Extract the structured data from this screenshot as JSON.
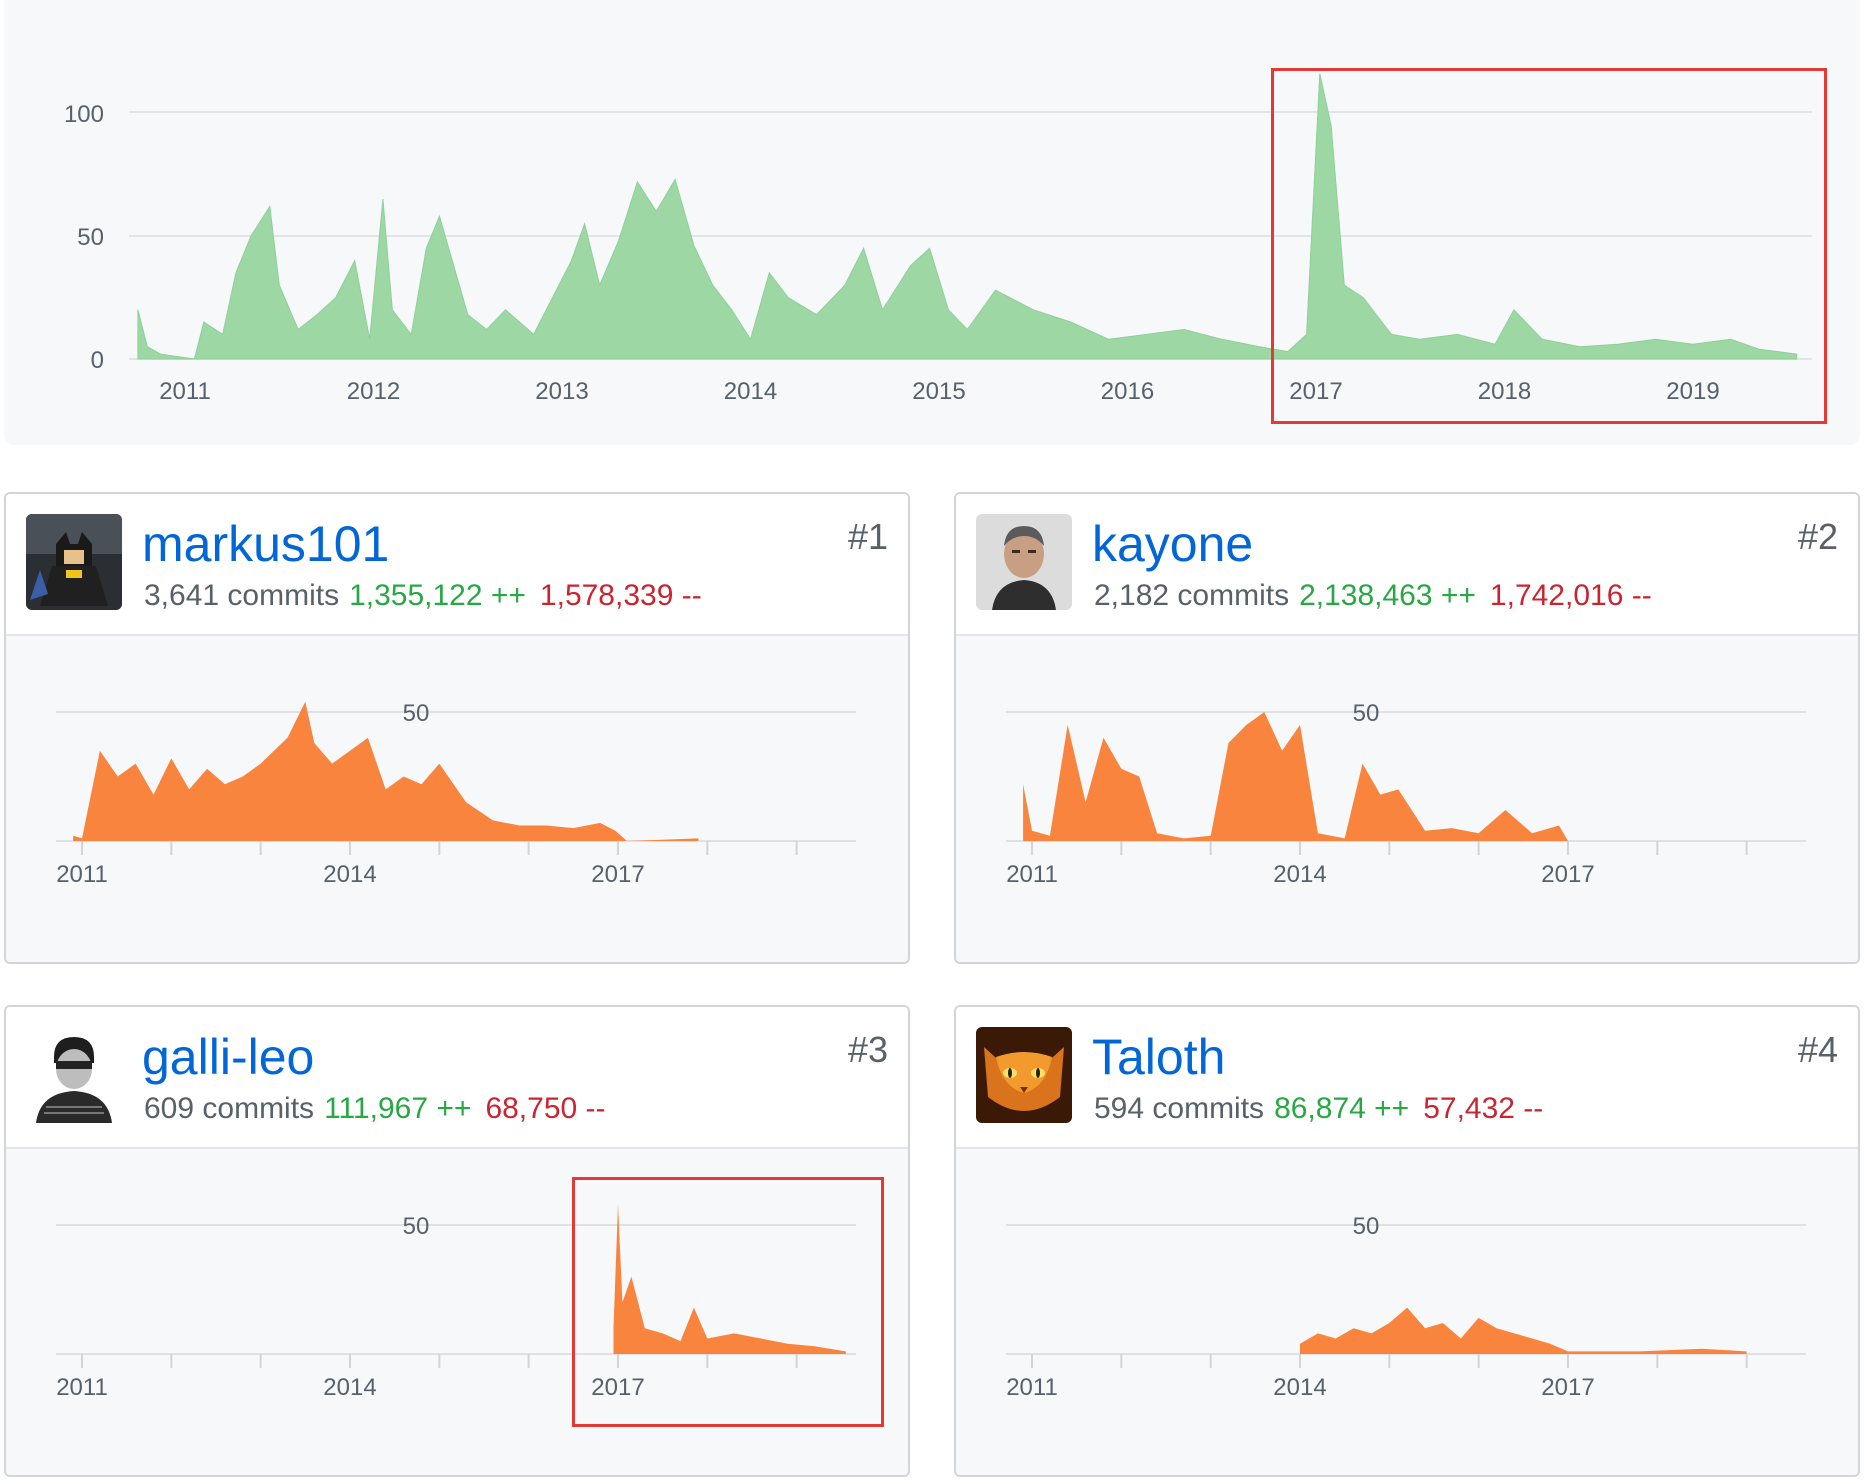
{
  "main_chart": {
    "y_ticks": [
      "100",
      "50",
      "0"
    ],
    "x_ticks": [
      "2011",
      "2012",
      "2013",
      "2014",
      "2015",
      "2016",
      "2017",
      "2018",
      "2019"
    ],
    "fill_color": "#9cd7a4"
  },
  "chart_data": [
    {
      "type": "area",
      "title": "",
      "xlabel": "",
      "ylabel": "",
      "ylim": [
        0,
        115
      ],
      "xlim": [
        2010.75,
        2019.55
      ],
      "peak": {
        "x": 2017.02,
        "y": 116
      },
      "series": [
        {
          "name": "commits",
          "x": [
            2010.75,
            2010.8,
            2010.87,
            2011.05,
            2011.1,
            2011.2,
            2011.27,
            2011.35,
            2011.45,
            2011.5,
            2011.6,
            2011.7,
            2011.8,
            2011.9,
            2011.98,
            2012.05,
            2012.1,
            2012.2,
            2012.28,
            2012.35,
            2012.5,
            2012.6,
            2012.7,
            2012.85,
            2012.95,
            2013.05,
            2013.12,
            2013.2,
            2013.3,
            2013.4,
            2013.5,
            2013.6,
            2013.7,
            2013.8,
            2013.9,
            2014.0,
            2014.1,
            2014.2,
            2014.35,
            2014.5,
            2014.6,
            2014.7,
            2014.85,
            2014.95,
            2015.05,
            2015.15,
            2015.3,
            2015.5,
            2015.7,
            2015.9,
            2016.1,
            2016.3,
            2016.5,
            2016.7,
            2016.85,
            2016.95,
            2017.02,
            2017.08,
            2017.15,
            2017.25,
            2017.4,
            2017.55,
            2017.75,
            2017.95,
            2018.05,
            2018.2,
            2018.4,
            2018.6,
            2018.8,
            2019.0,
            2019.2,
            2019.35,
            2019.55
          ],
          "y": [
            20,
            5,
            2,
            0,
            15,
            10,
            35,
            50,
            62,
            30,
            12,
            18,
            25,
            40,
            8,
            65,
            20,
            10,
            45,
            58,
            18,
            12,
            20,
            10,
            25,
            40,
            55,
            30,
            48,
            72,
            60,
            73,
            46,
            30,
            20,
            8,
            35,
            25,
            18,
            30,
            45,
            20,
            38,
            45,
            20,
            12,
            28,
            20,
            15,
            8,
            10,
            12,
            8,
            5,
            3,
            10,
            116,
            95,
            30,
            25,
            10,
            8,
            10,
            6,
            20,
            8,
            5,
            6,
            8,
            6,
            8,
            4,
            2
          ]
        }
      ]
    },
    {
      "type": "area",
      "title": "markus101",
      "x_ticks": [
        "2011",
        "2014",
        "2017"
      ],
      "y_ticks": [
        "50"
      ],
      "ylim": [
        0,
        50
      ],
      "series": [
        {
          "name": "commits",
          "x": [
            2010.9,
            2011.0,
            2011.2,
            2011.4,
            2011.6,
            2011.8,
            2012.0,
            2012.2,
            2012.4,
            2012.6,
            2012.8,
            2013.0,
            2013.3,
            2013.5,
            2013.6,
            2013.8,
            2014.0,
            2014.2,
            2014.4,
            2014.6,
            2014.8,
            2015.0,
            2015.3,
            2015.6,
            2015.9,
            2016.2,
            2016.5,
            2016.8,
            2016.97,
            2017.1,
            2017.9
          ],
          "y": [
            2,
            1,
            35,
            25,
            30,
            18,
            32,
            20,
            28,
            22,
            25,
            30,
            40,
            54,
            38,
            30,
            35,
            40,
            20,
            25,
            22,
            30,
            15,
            8,
            6,
            6,
            5,
            7,
            4,
            0,
            1
          ]
        }
      ]
    },
    {
      "type": "area",
      "title": "kayone",
      "x_ticks": [
        "2011",
        "2014",
        "2017"
      ],
      "y_ticks": [
        "50"
      ],
      "ylim": [
        0,
        50
      ],
      "series": [
        {
          "name": "commits",
          "x": [
            2010.9,
            2011.0,
            2011.2,
            2011.4,
            2011.6,
            2011.8,
            2012.0,
            2012.2,
            2012.4,
            2012.7,
            2013.0,
            2013.2,
            2013.4,
            2013.6,
            2013.8,
            2014.0,
            2014.2,
            2014.5,
            2014.7,
            2014.9,
            2015.1,
            2015.4,
            2015.7,
            2016.0,
            2016.3,
            2016.6,
            2016.9,
            2017.0
          ],
          "y": [
            22,
            4,
            2,
            45,
            15,
            40,
            28,
            25,
            3,
            1,
            2,
            38,
            45,
            50,
            35,
            45,
            3,
            1,
            30,
            18,
            20,
            4,
            5,
            3,
            12,
            3,
            6,
            0
          ]
        }
      ]
    },
    {
      "type": "area",
      "title": "galli-leo",
      "x_ticks": [
        "2011",
        "2014",
        "2017"
      ],
      "y_ticks": [
        "50"
      ],
      "ylim": [
        0,
        50
      ],
      "series": [
        {
          "name": "commits",
          "x": [
            2016.95,
            2017.0,
            2017.05,
            2017.15,
            2017.3,
            2017.5,
            2017.7,
            2017.85,
            2018.0,
            2018.3,
            2018.6,
            2018.9,
            2019.2,
            2019.55
          ],
          "y": [
            10,
            58,
            20,
            30,
            10,
            8,
            5,
            18,
            6,
            8,
            6,
            4,
            3,
            1
          ]
        }
      ]
    },
    {
      "type": "area",
      "title": "Taloth",
      "x_ticks": [
        "2011",
        "2014",
        "2017"
      ],
      "y_ticks": [
        "50"
      ],
      "ylim": [
        0,
        50
      ],
      "series": [
        {
          "name": "commits",
          "x": [
            2014.0,
            2014.2,
            2014.4,
            2014.6,
            2014.8,
            2015.0,
            2015.2,
            2015.4,
            2015.6,
            2015.8,
            2016.0,
            2016.2,
            2016.4,
            2016.6,
            2016.8,
            2017.0,
            2017.8,
            2018.5,
            2019.0
          ],
          "y": [
            4,
            8,
            6,
            10,
            8,
            12,
            18,
            10,
            12,
            6,
            14,
            10,
            8,
            6,
            4,
            1,
            1,
            2,
            1
          ]
        }
      ]
    }
  ],
  "contributors": [
    {
      "username": "markus101",
      "commits": "3,641 commits",
      "additions": "1,355,122 ++",
      "deletions": "1,578,339 --",
      "rank": "#1",
      "avatar": "lego-batman-avatar"
    },
    {
      "username": "kayone",
      "commits": "2,182 commits",
      "additions": "2,138,463 ++",
      "deletions": "1,742,016 --",
      "rank": "#2",
      "avatar": "portrait-avatar"
    },
    {
      "username": "galli-leo",
      "commits": "609 commits",
      "additions": "111,967 ++",
      "deletions": "68,750 --",
      "rank": "#3",
      "avatar": "bw-portrait-avatar"
    },
    {
      "username": "Taloth",
      "commits": "594 commits",
      "additions": "86,874 ++",
      "deletions": "57,432 --",
      "rank": "#4",
      "avatar": "fire-cat-avatar"
    }
  ],
  "small_chart": {
    "x_ticks": [
      "2011",
      "2014",
      "2017"
    ],
    "y_tick": "50",
    "fill_color": "#f9843d"
  },
  "colors": {
    "link": "#0366d6",
    "additions": "#28a745",
    "deletions": "#cb2431",
    "highlight": "#e53935"
  }
}
